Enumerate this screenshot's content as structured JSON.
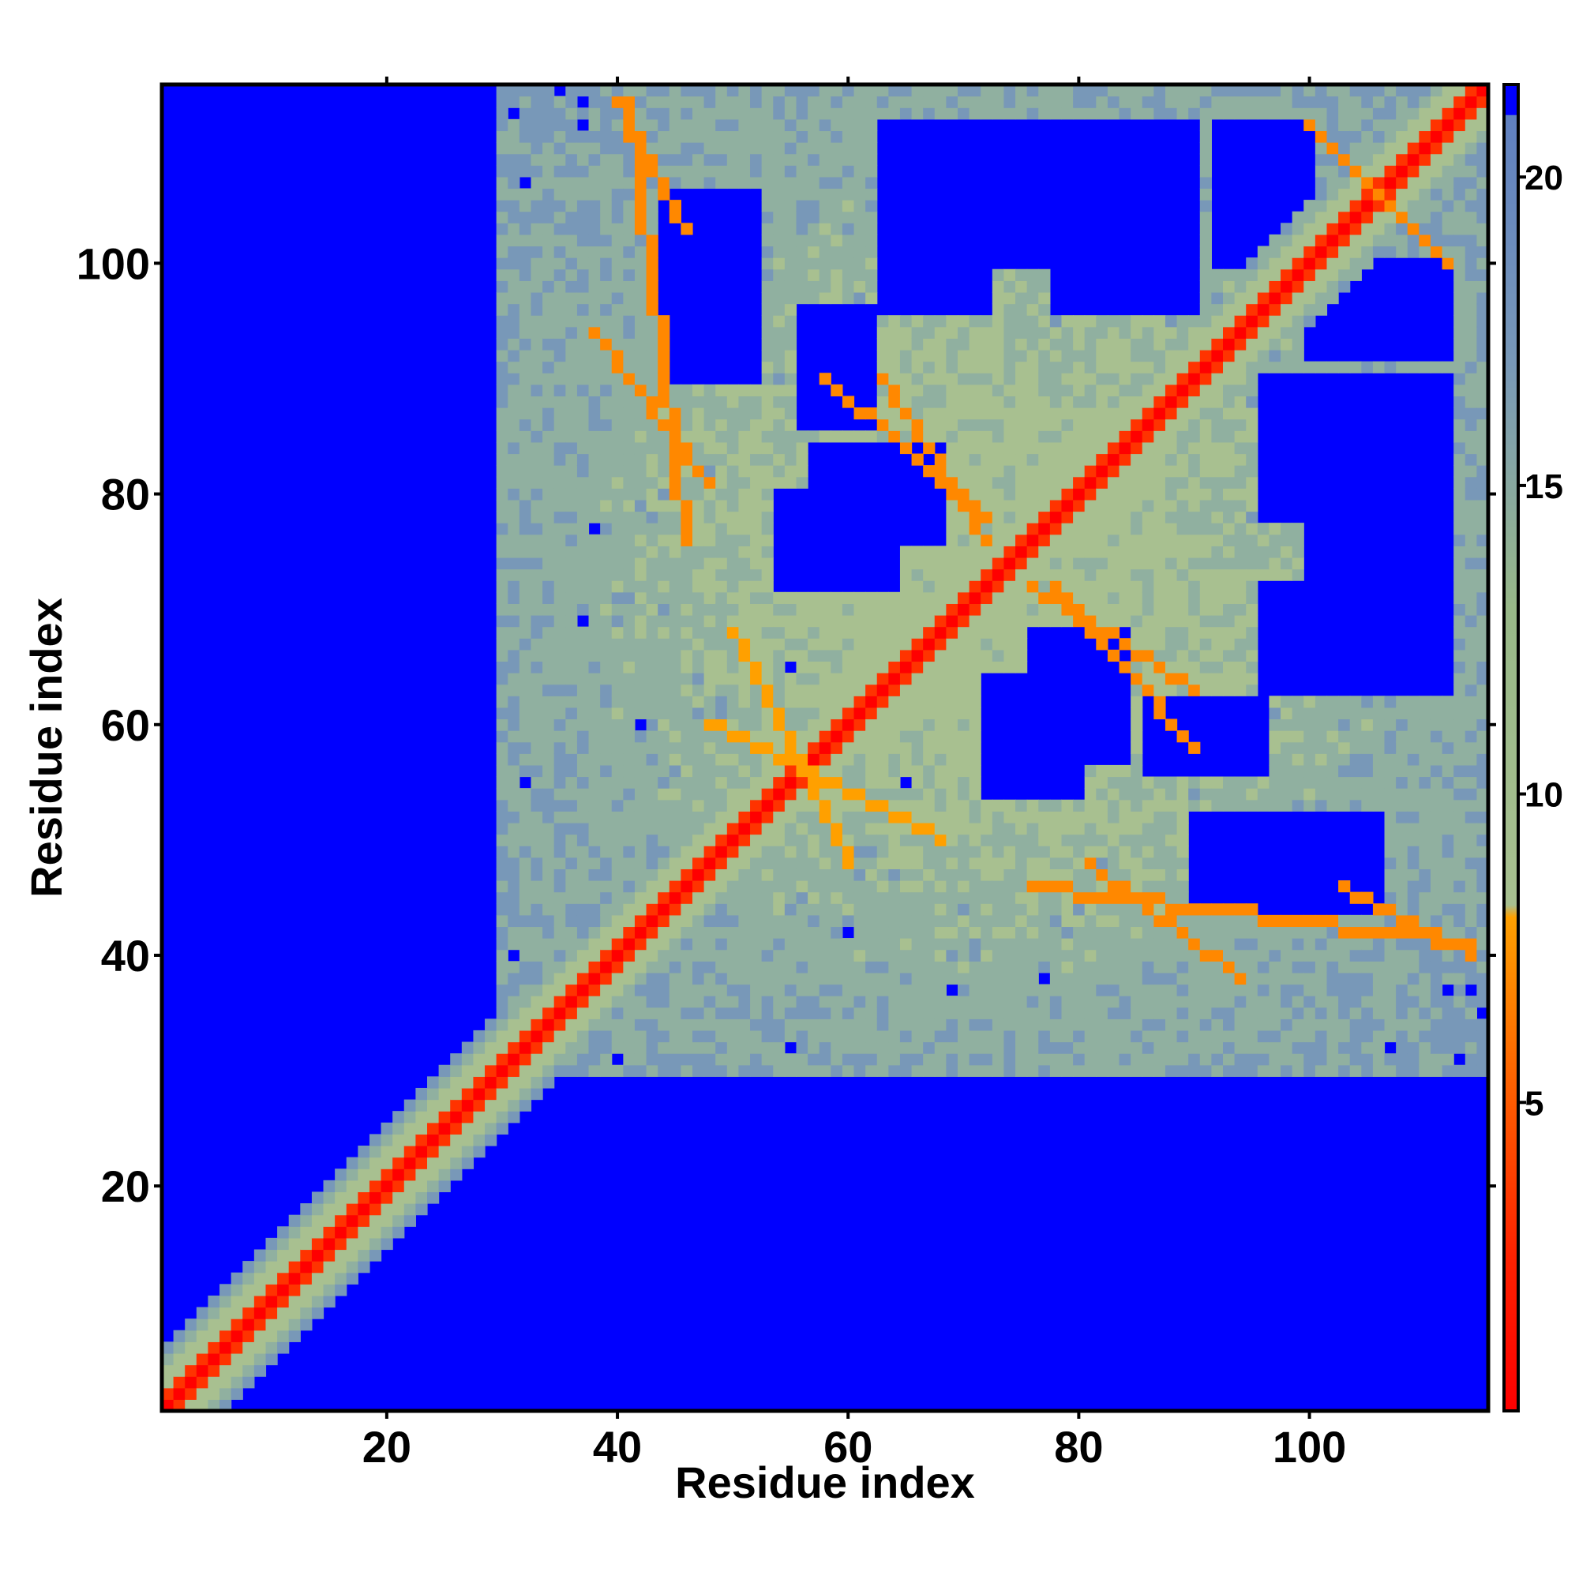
{
  "chart_data": {
    "type": "heatmap",
    "title": "",
    "xlabel": "Residue index",
    "ylabel": "Residue index",
    "n_residues": 115,
    "xlim": [
      0.5,
      115.5
    ],
    "ylim": [
      0.5,
      115.5
    ],
    "x_ticks": [
      20,
      40,
      60,
      80,
      100
    ],
    "y_ticks": [
      20,
      40,
      60,
      80,
      100
    ],
    "x_tick_labels": [
      "20",
      "40",
      "60",
      "80",
      "100"
    ],
    "y_tick_labels": [
      "20",
      "40",
      "60",
      "80",
      "100"
    ],
    "value_range": [
      0,
      21.5
    ],
    "value_cutoff": 21,
    "colorbar": {
      "placement": "right",
      "ticks": [
        5,
        10,
        15,
        20
      ],
      "tick_labels": [
        "5",
        "10",
        "15",
        "20"
      ],
      "stops": [
        {
          "value": 0,
          "color": "#ff0000"
        },
        {
          "value": 2.5,
          "color": "#ff2200"
        },
        {
          "value": 5,
          "color": "#ff5a00"
        },
        {
          "value": 8,
          "color": "#ffa000"
        },
        {
          "value": 8.2,
          "color": "#a8c090"
        },
        {
          "value": 13,
          "color": "#98b888"
        },
        {
          "value": 17,
          "color": "#7898b8"
        },
        {
          "value": 21,
          "color": "#6080c0"
        },
        {
          "value": 21.01,
          "color": "#0000ff"
        }
      ]
    },
    "contact_regions": [
      {
        "x_range": [
          41,
          46
        ],
        "y_range": [
          76,
          114
        ],
        "value": 6
      },
      {
        "x_range": [
          63,
          72
        ],
        "y_range": [
          76,
          90
        ],
        "value": 6
      },
      {
        "x_range": [
          50,
          60
        ],
        "y_range": [
          48,
          68
        ],
        "value": 7
      },
      {
        "x_range": [
          78,
          90
        ],
        "y_range": [
          58,
          72
        ],
        "value": 6
      },
      {
        "x_range": [
          81,
          94
        ],
        "y_range": [
          38,
          48
        ],
        "value": 6
      },
      {
        "x_range": [
          103,
          114
        ],
        "y_range": [
          40,
          46
        ],
        "value": 6
      },
      {
        "x_range": [
          100,
          112
        ],
        "y_range": [
          100,
          112
        ],
        "value": 6
      }
    ],
    "colors": {
      "background": "#0000ff",
      "diagonal": "#ff0000",
      "contact": "#ffa000",
      "mid": "#a8c090",
      "far": "#7898b8"
    },
    "grid": false
  }
}
